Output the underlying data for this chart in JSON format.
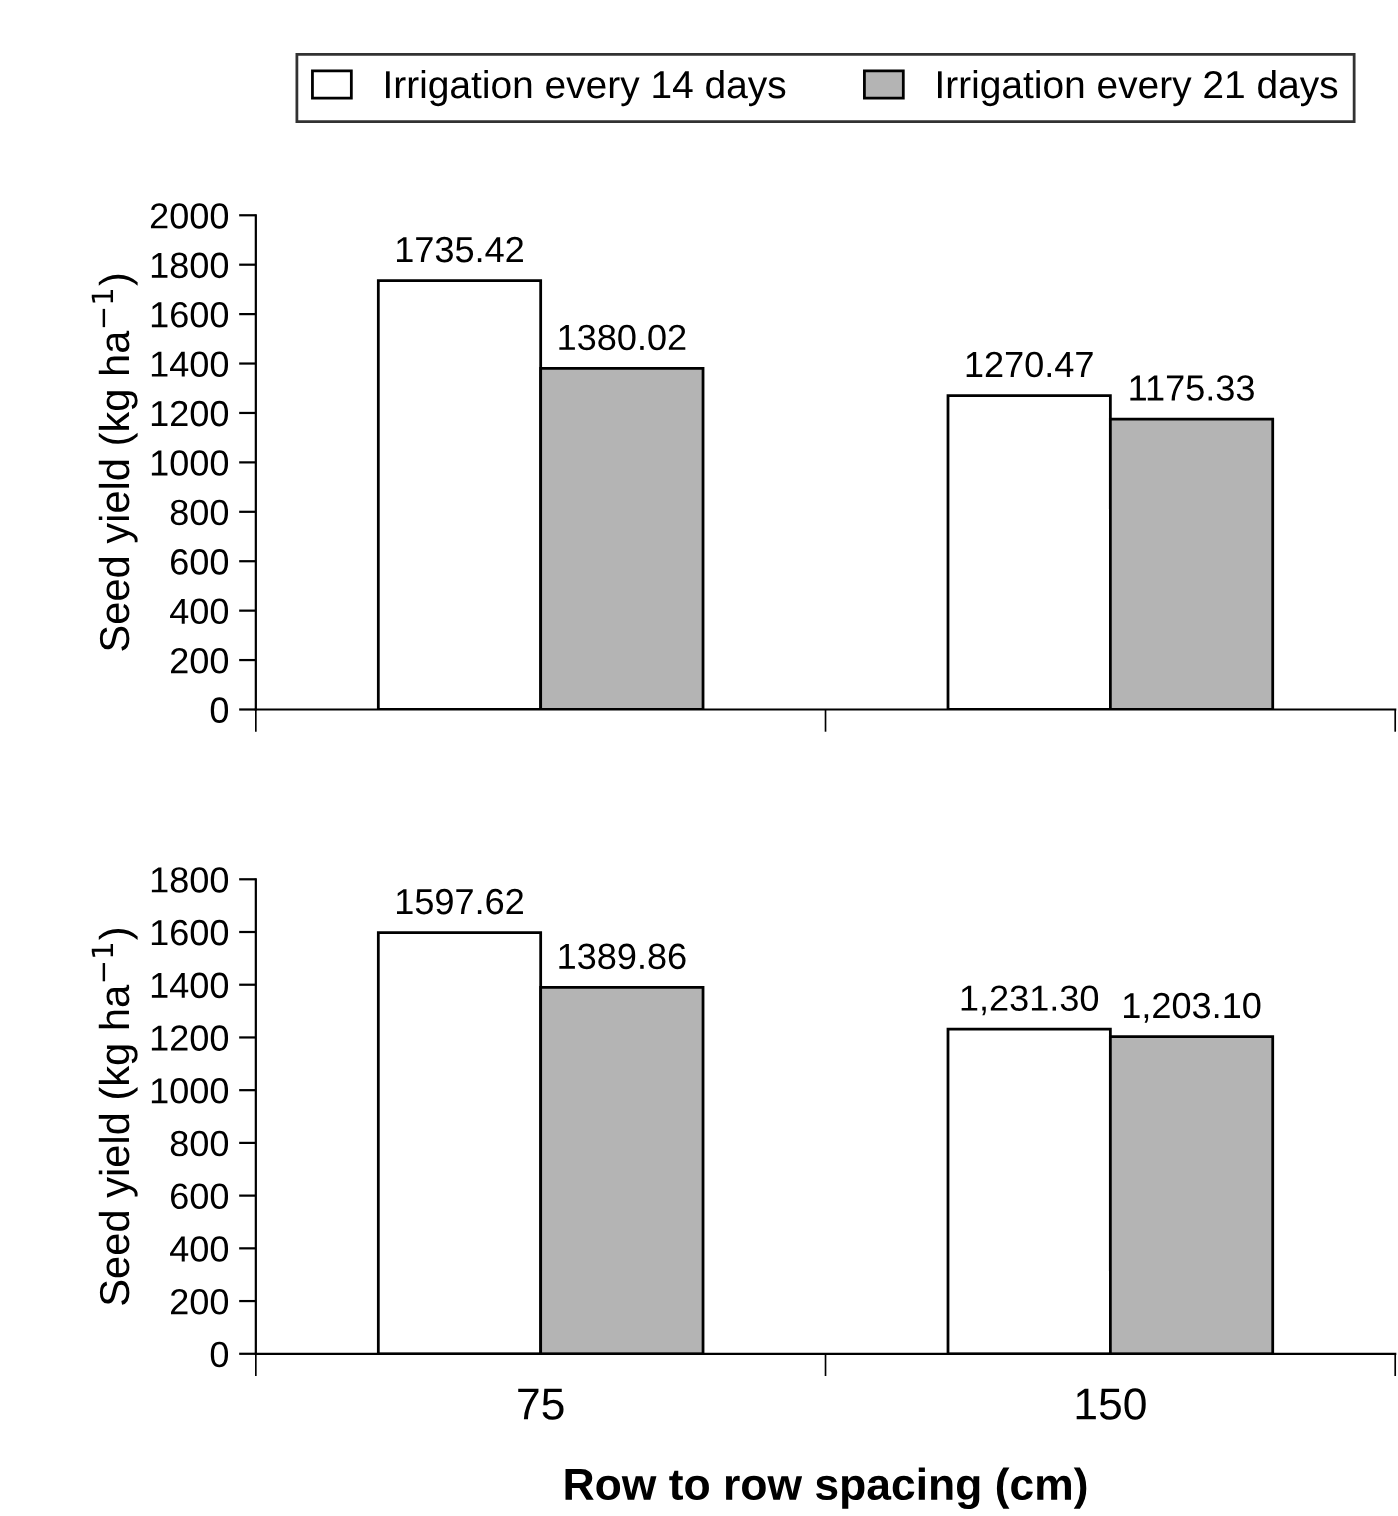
{
  "chart_data": [
    {
      "type": "bar",
      "categories": [
        null,
        null
      ],
      "ylabel": "Seed yield (kg ha$^{−1}$)",
      "ylim": [
        0,
        2000
      ],
      "yticks": [
        0,
        200,
        400,
        600,
        800,
        1000,
        1200,
        1400,
        1600,
        1800,
        2000
      ],
      "tick_labels": "y",
      "legend": "top",
      "grid": false,
      "data_labels": true,
      "series": [
        {
          "name": "Irrigation every 14 days",
          "color": "#ffffff",
          "values": [
            1735.42,
            1270.47
          ]
        },
        {
          "name": "Irrigation every 21 days",
          "color": "#b4b4b4",
          "values": [
            1380.02,
            1175.33
          ]
        }
      ]
    },
    {
      "type": "bar",
      "categories": [
        "75",
        "150"
      ],
      "xlabel": "Row to row spacing (cm)",
      "ylabel": "Seed yield (kg ha$^{−1}$)",
      "ylim": [
        0,
        1800
      ],
      "yticks": [
        0,
        200,
        400,
        600,
        800,
        1000,
        1200,
        1400,
        1600,
        1800
      ],
      "grid": false,
      "series": [
        {
          "color": "#ffffff",
          "values": [
            1597.62,
            1231.3
          ],
          "value_labels": [
            "1597.62",
            "1,231.30"
          ]
        },
        {
          "color": "#b4b4b4",
          "values": [
            1389.86,
            1203.1
          ],
          "value_labels": [
            "1389.86",
            "1,203.10"
          ]
        }
      ]
    }
  ]
}
